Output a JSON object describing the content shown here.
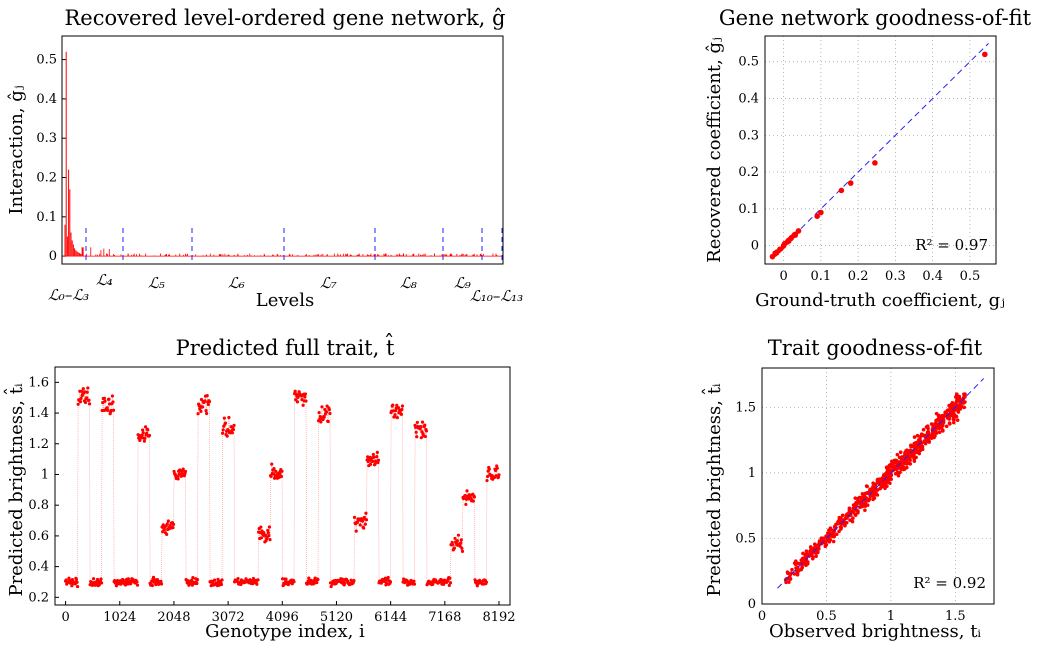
{
  "chart_data": [
    {
      "id": "network",
      "type": "bar",
      "title": "Recovered level-ordered gene network, ĝ",
      "xlabel": "Levels",
      "ylabel": "Interaction, ĝⱼ",
      "ylim": [
        -0.02,
        0.56
      ],
      "yticks": [
        "0",
        "0.1",
        "0.2",
        "0.3",
        "0.4",
        "0.5"
      ],
      "level_labels": [
        "ℒ₀–ℒ₃",
        "ℒ₄",
        "ℒ₅",
        "ℒ₆",
        "ℒ₇",
        "ℒ₈",
        "ℒ₉",
        "ℒ₁₀–ℒ₁₃"
      ],
      "series": [
        {
          "values": [
            0.08,
            0.52,
            0.05,
            0.22,
            0.17,
            0.06,
            0.04,
            0.03,
            0.02,
            0.015,
            0.012,
            0.01,
            0.008,
            0.006,
            0.005
          ]
        }
      ],
      "color": "#ff0000",
      "divider_color": "#2020ff"
    },
    {
      "id": "network-fit",
      "type": "scatter",
      "title": "Gene network goodness-of-fit",
      "xlabel": "Ground-truth coefficient, gⱼ",
      "ylabel": "Recovered coefficient, ĝⱼ",
      "xlim": [
        -0.05,
        0.57
      ],
      "ylim": [
        -0.05,
        0.57
      ],
      "xticks": [
        "0",
        "0.1",
        "0.2",
        "0.3",
        "0.4",
        "0.5"
      ],
      "yticks": [
        "0",
        "0.1",
        "0.2",
        "0.3",
        "0.4",
        "0.5"
      ],
      "points": [
        [
          -0.03,
          -0.03
        ],
        [
          -0.02,
          -0.02
        ],
        [
          -0.01,
          -0.01
        ],
        [
          0,
          0
        ],
        [
          0.01,
          0.01
        ],
        [
          0.02,
          0.02
        ],
        [
          0.03,
          0.03
        ],
        [
          0.04,
          0.04
        ],
        [
          0.09,
          0.08
        ],
        [
          0.1,
          0.09
        ],
        [
          0.155,
          0.15
        ],
        [
          0.18,
          0.17
        ],
        [
          0.245,
          0.225
        ],
        [
          0.54,
          0.52
        ]
      ],
      "r2": "R² = 0.97",
      "color": "#ff0000"
    },
    {
      "id": "trait",
      "type": "line",
      "title": "Predicted full trait, t̂",
      "xlabel": "Genotype index, i",
      "ylabel": "Predicted brightness, t̂ᵢ",
      "xlim": [
        -200,
        8400
      ],
      "ylim": [
        0.15,
        1.7
      ],
      "xticks": [
        "0",
        "1024",
        "2048",
        "3072",
        "4096",
        "5120",
        "6144",
        "7168",
        "8192"
      ],
      "yticks": [
        "0.2",
        "0.4",
        "0.6",
        "0.8",
        "1",
        "1.2",
        "1.4",
        "1.6"
      ],
      "segment_levels": [
        0.3,
        1.5,
        0.3,
        1.45,
        0.3,
        0.3,
        1.25,
        0.3,
        0.65,
        1.0,
        0.3,
        1.45,
        0.3,
        1.3,
        0.3,
        0.3,
        0.6,
        1.0,
        0.3,
        1.5,
        0.3,
        1.4,
        0.3,
        0.3,
        0.7,
        1.1,
        0.3,
        1.4,
        0.3,
        1.3,
        0.3,
        0.3,
        0.55,
        0.85,
        0.3,
        1.0
      ],
      "color": "#ff0000"
    },
    {
      "id": "trait-fit",
      "type": "scatter",
      "title": "Trait goodness-of-fit",
      "xlabel": "Observed brightness, tᵢ",
      "ylabel": "Predicted brightness, t̂ᵢ",
      "xlim": [
        0,
        1.8
      ],
      "ylim": [
        0,
        1.8
      ],
      "xticks": [
        "0",
        "0.5",
        "1",
        "1.5"
      ],
      "yticks": [
        "0",
        "0.5",
        "1",
        "1.5"
      ],
      "r2": "R² = 0.92",
      "color": "#ff0000"
    }
  ]
}
